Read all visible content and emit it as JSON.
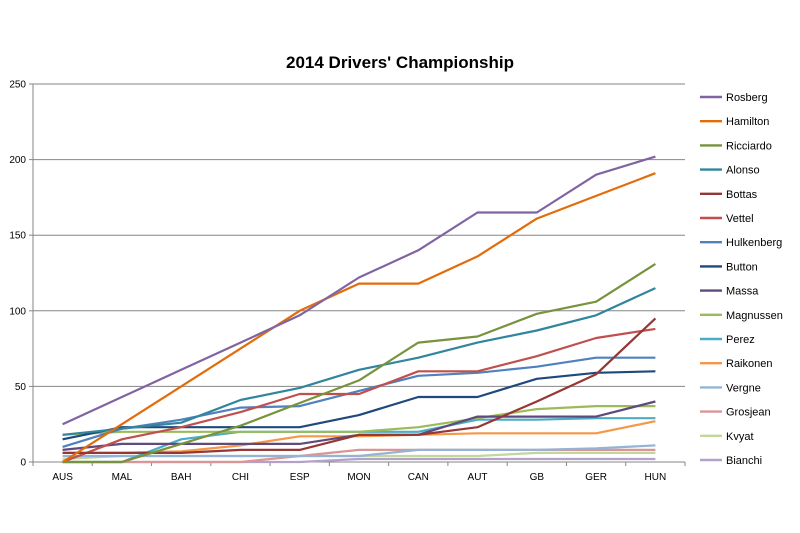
{
  "chart_data": {
    "type": "line",
    "title": "2014 Drivers' Championship",
    "xlabel": "",
    "ylabel": "",
    "ylim": [
      0,
      250
    ],
    "yticks": [
      0,
      50,
      100,
      150,
      200,
      250
    ],
    "grid": true,
    "legend_position": "right",
    "categories": [
      "AUS",
      "MAL",
      "BAH",
      "CHI",
      "ESP",
      "MON",
      "CAN",
      "AUT",
      "GB",
      "GER",
      "HUN"
    ],
    "series": [
      {
        "name": "Rosberg",
        "color": "#8064a2",
        "values": [
          25,
          43,
          61,
          79,
          97,
          122,
          140,
          165,
          165,
          190,
          202
        ]
      },
      {
        "name": "Hamilton",
        "color": "#e36c0a",
        "values": [
          0,
          25,
          50,
          75,
          100,
          118,
          118,
          136,
          161,
          176,
          191
        ]
      },
      {
        "name": "Ricciardo",
        "color": "#77933c",
        "values": [
          0,
          0,
          12,
          24,
          39,
          54,
          79,
          83,
          98,
          106,
          131
        ]
      },
      {
        "name": "Alonso",
        "color": "#31859c",
        "values": [
          18,
          22,
          26,
          41,
          49,
          61,
          69,
          79,
          87,
          97,
          115
        ]
      },
      {
        "name": "Bottas",
        "color": "#953735",
        "values": [
          6,
          6,
          6,
          8,
          8,
          18,
          18,
          23,
          40,
          58,
          95
        ]
      },
      {
        "name": "Vettel",
        "color": "#c0504d",
        "values": [
          0,
          15,
          23,
          33,
          45,
          45,
          60,
          60,
          70,
          82,
          88
        ]
      },
      {
        "name": "Hulkenberg",
        "color": "#4f81bd",
        "values": [
          10,
          22,
          28,
          36,
          37,
          47,
          57,
          59,
          63,
          69,
          69
        ]
      },
      {
        "name": "Button",
        "color": "#1f497d",
        "values": [
          15,
          23,
          23,
          23,
          23,
          31,
          43,
          43,
          55,
          59,
          60
        ]
      },
      {
        "name": "Massa",
        "color": "#604a7b",
        "values": [
          8,
          12,
          12,
          12,
          12,
          18,
          18,
          30,
          30,
          30,
          40
        ]
      },
      {
        "name": "Magnussen",
        "color": "#9bbb59",
        "values": [
          18,
          20,
          20,
          20,
          20,
          20,
          23,
          29,
          35,
          37,
          37
        ]
      },
      {
        "name": "Perez",
        "color": "#4bacc6",
        "values": [
          0,
          0,
          15,
          20,
          20,
          20,
          20,
          28,
          28,
          29,
          29
        ]
      },
      {
        "name": "Raikonen",
        "color": "#f79646",
        "values": [
          6,
          6,
          7,
          11,
          17,
          17,
          18,
          19,
          19,
          19,
          27
        ]
      },
      {
        "name": "Vergne",
        "color": "#95b3d7",
        "values": [
          4,
          4,
          4,
          4,
          4,
          4,
          8,
          8,
          8,
          9,
          11
        ]
      },
      {
        "name": "Grosjean",
        "color": "#d99694",
        "values": [
          0,
          0,
          0,
          0,
          4,
          8,
          8,
          8,
          8,
          8,
          8
        ]
      },
      {
        "name": "Kvyat",
        "color": "#c3d69b",
        "values": [
          2,
          4,
          4,
          4,
          4,
          4,
          4,
          4,
          6,
          6,
          6
        ]
      },
      {
        "name": "Bianchi",
        "color": "#b3a2c7",
        "values": [
          0,
          0,
          0,
          0,
          0,
          2,
          2,
          2,
          2,
          2,
          2
        ]
      }
    ]
  }
}
